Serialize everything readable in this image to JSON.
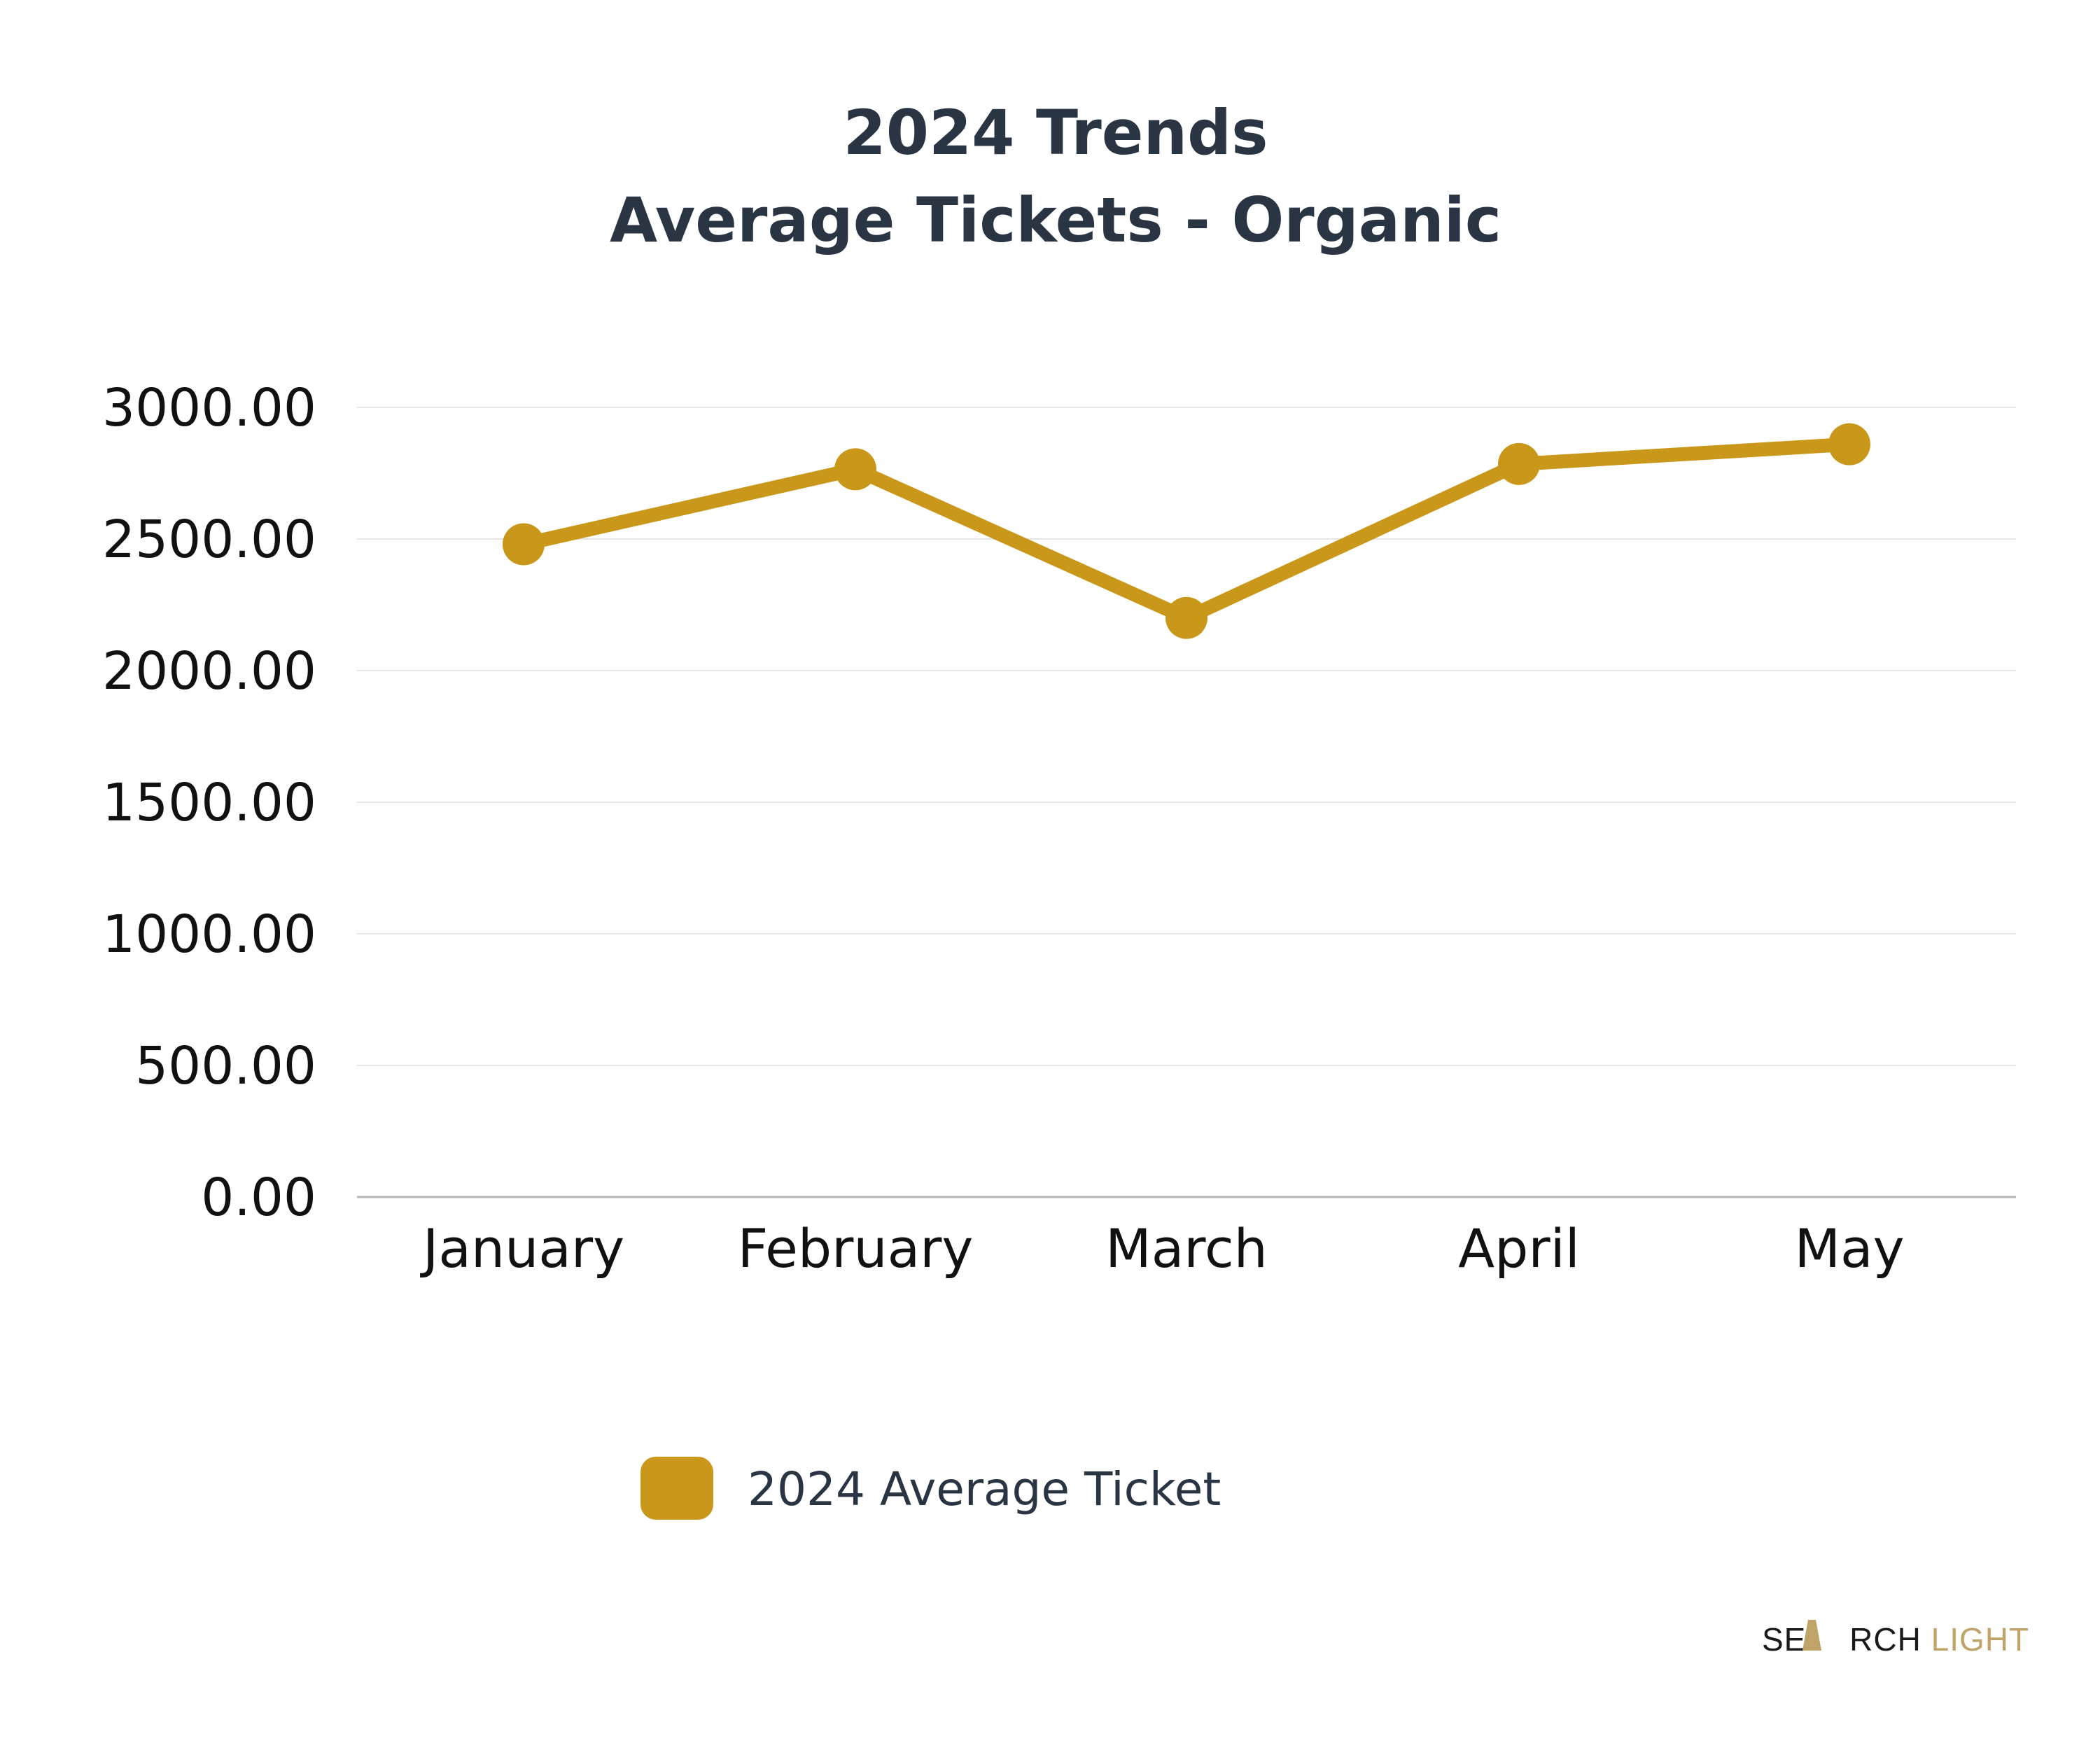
{
  "chart_data": {
    "type": "line",
    "title": "2024 Trends",
    "subtitle": "Average Tickets - Organic",
    "categories": [
      "January",
      "February",
      "March",
      "April",
      "May"
    ],
    "series": [
      {
        "name": "2024 Average Ticket",
        "color": "#c9981a",
        "values": [
          2480,
          2765,
          2200,
          2785,
          2860
        ]
      }
    ],
    "y_ticks": [
      "0.00",
      "500.00",
      "1000.00",
      "1500.00",
      "2000.00",
      "2500.00",
      "3000.00"
    ],
    "ylim": [
      0,
      3000
    ],
    "xlabel": "",
    "ylabel": "",
    "grid": true,
    "legend_position": "bottom"
  },
  "legend": {
    "label": "2024 Average Ticket",
    "color": "#c9981a"
  },
  "branding": {
    "logo_dark": "SE",
    "logo_mid": "RCH",
    "logo_light": "LIGHT",
    "dark_color": "#1a1a1a",
    "light_color": "#bfa46a"
  }
}
